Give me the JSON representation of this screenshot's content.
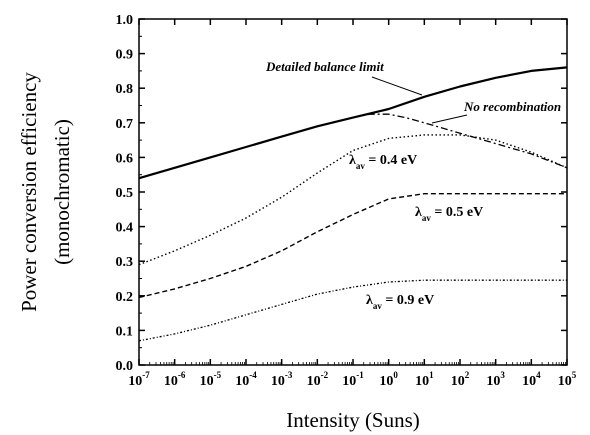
{
  "chart_data": {
    "type": "line",
    "xlabel": "Intensity (Suns)",
    "ylabel_lines": [
      "Power conversion efficiency",
      "(monochromatic)"
    ],
    "x_scale": "log",
    "x_exponent_range": [
      -7,
      5
    ],
    "ylim": [
      0.0,
      1.0
    ],
    "y_ticks": [
      "0.0",
      "0.1",
      "0.2",
      "0.3",
      "0.4",
      "0.5",
      "0.6",
      "0.7",
      "0.8",
      "0.9",
      "1.0"
    ],
    "x_tick_base": "10",
    "x_tick_exponents": [
      "-7",
      "-6",
      "-5",
      "-4",
      "-3",
      "-2",
      "-1",
      "0",
      "1",
      "2",
      "3",
      "4",
      "5"
    ],
    "grid": false,
    "legend": "none",
    "series": [
      {
        "label_text": "Detailed balance limit",
        "style": "solid",
        "points": [
          [
            1e-07,
            0.54
          ],
          [
            1e-06,
            0.57
          ],
          [
            1e-05,
            0.6
          ],
          [
            0.0001,
            0.63
          ],
          [
            0.001,
            0.66
          ],
          [
            0.01,
            0.69
          ],
          [
            0.1,
            0.715
          ],
          [
            1,
            0.74
          ],
          [
            10,
            0.775
          ],
          [
            100,
            0.805
          ],
          [
            1000,
            0.83
          ],
          [
            10000,
            0.85
          ],
          [
            100000,
            0.86
          ]
        ]
      },
      {
        "label_text": "No recombination",
        "style": "dashdot",
        "points": [
          [
            0.1,
            0.715
          ],
          [
            0.3,
            0.725
          ],
          [
            1,
            0.725
          ],
          [
            3,
            0.715
          ],
          [
            10,
            0.7
          ],
          [
            100,
            0.67
          ],
          [
            1000,
            0.64
          ],
          [
            10000,
            0.61
          ],
          [
            100000,
            0.57
          ]
        ]
      },
      {
        "label_main": "λ",
        "label_sub": "av",
        "label_rest": " = 0.4 eV",
        "style": "dotted",
        "points": [
          [
            1e-07,
            0.29
          ],
          [
            1e-06,
            0.33
          ],
          [
            1e-05,
            0.375
          ],
          [
            0.0001,
            0.425
          ],
          [
            0.001,
            0.485
          ],
          [
            0.01,
            0.555
          ],
          [
            0.1,
            0.62
          ],
          [
            1,
            0.655
          ],
          [
            10,
            0.665
          ],
          [
            100,
            0.665
          ],
          [
            1000,
            0.65
          ],
          [
            10000,
            0.615
          ],
          [
            100000,
            0.57
          ]
        ]
      },
      {
        "label_main": "λ",
        "label_sub": "av",
        "label_rest": " = 0.5 eV",
        "style": "dashed",
        "points": [
          [
            1e-07,
            0.195
          ],
          [
            1e-06,
            0.22
          ],
          [
            1e-05,
            0.25
          ],
          [
            0.0001,
            0.285
          ],
          [
            0.001,
            0.33
          ],
          [
            0.01,
            0.385
          ],
          [
            0.1,
            0.435
          ],
          [
            1,
            0.48
          ],
          [
            10,
            0.495
          ],
          [
            100,
            0.495
          ],
          [
            1000,
            0.495
          ],
          [
            10000,
            0.495
          ],
          [
            100000,
            0.495
          ]
        ]
      },
      {
        "label_main": "λ",
        "label_sub": "av",
        "label_rest": " = 0.9 eV",
        "style": "densedot",
        "points": [
          [
            1e-07,
            0.07
          ],
          [
            1e-06,
            0.09
          ],
          [
            1e-05,
            0.115
          ],
          [
            0.0001,
            0.145
          ],
          [
            0.001,
            0.175
          ],
          [
            0.01,
            0.205
          ],
          [
            0.1,
            0.225
          ],
          [
            1,
            0.24
          ],
          [
            10,
            0.245
          ],
          [
            100,
            0.245
          ],
          [
            1000,
            0.245
          ],
          [
            10000,
            0.245
          ],
          [
            100000,
            0.245
          ]
        ]
      }
    ]
  }
}
